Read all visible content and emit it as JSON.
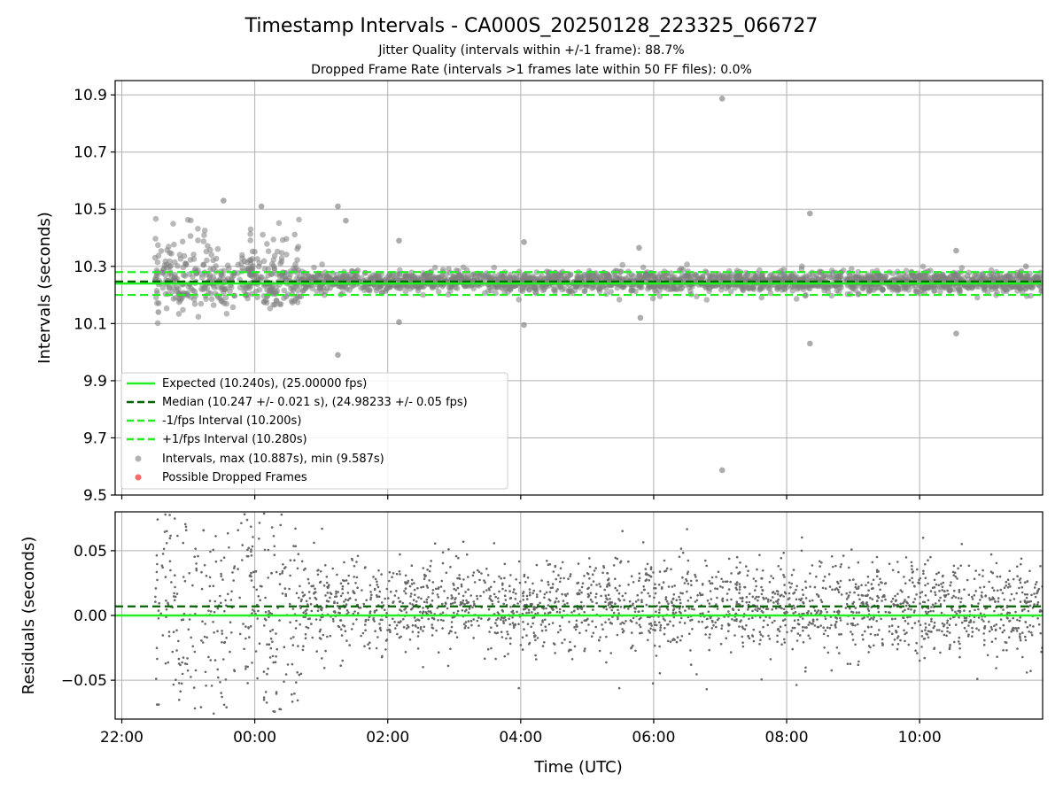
{
  "title": "Timestamp Intervals - CA000S_20250128_223325_066727",
  "subtitle_1": "Jitter Quality (intervals within +/-1 frame): 88.7%",
  "subtitle_2": "Dropped Frame Rate (intervals >1 frames late within 50 FF files): 0.0%",
  "colors": {
    "expected": "#22ee22",
    "median": "#006400",
    "bounds": "#22ee22",
    "points": "#808080",
    "dropped": "#ff4444"
  },
  "chart_data": [
    {
      "type": "scatter",
      "panel": "intervals",
      "ylabel": "Intervals (seconds)",
      "ylim": [
        9.5,
        10.95
      ],
      "y_ticks": [
        "10.9",
        "10.7",
        "10.5",
        "10.3",
        "10.1",
        "9.9",
        "9.7",
        "9.5"
      ],
      "y_tick_values": [
        10.9,
        10.7,
        10.5,
        10.3,
        10.1,
        9.9,
        9.7,
        9.5
      ],
      "xlim_hours": [
        -2.1,
        11.85
      ],
      "grid": true,
      "legend_position": "lower-left",
      "reference_lines": [
        {
          "name": "Expected (10.240s), (25.00000 fps)",
          "y": 10.24,
          "style": "solid"
        },
        {
          "name": "Median (10.247 +/- 0.021 s), (24.98233 +/- 0.05 fps)",
          "y": 10.247,
          "style": "dashed"
        },
        {
          "name": "-1/fps Interval (10.200s)",
          "y": 10.2,
          "style": "dashed"
        },
        {
          "name": "+1/fps Interval (10.280s)",
          "y": 10.28,
          "style": "dashed"
        }
      ],
      "series": [
        {
          "name": "Intervals, max (10.887s), min (9.587s)",
          "max": 10.887,
          "min": 9.587,
          "x_start_hours": -1.5,
          "x_end_hours": 11.85
        },
        {
          "name": "Possible Dropped Frames",
          "count": 0
        }
      ],
      "outliers": [
        {
          "x": 7.03,
          "y": 10.887
        },
        {
          "x": 7.03,
          "y": 9.587
        },
        {
          "x": 8.35,
          "y": 10.485
        },
        {
          "x": 8.35,
          "y": 10.03
        },
        {
          "x": -0.47,
          "y": 10.53
        },
        {
          "x": 0.1,
          "y": 10.51
        },
        {
          "x": 1.25,
          "y": 10.51
        },
        {
          "x": 1.37,
          "y": 10.46
        },
        {
          "x": 1.25,
          "y": 9.99
        },
        {
          "x": 2.17,
          "y": 10.39
        },
        {
          "x": 2.17,
          "y": 10.105
        },
        {
          "x": 4.05,
          "y": 10.385
        },
        {
          "x": 4.05,
          "y": 10.095
        },
        {
          "x": 5.78,
          "y": 10.365
        },
        {
          "x": 5.8,
          "y": 10.12
        },
        {
          "x": 10.55,
          "y": 10.355
        },
        {
          "x": 10.55,
          "y": 10.065
        },
        {
          "x": 11.6,
          "y": 10.3
        },
        {
          "x": -1.45,
          "y": 10.14
        }
      ]
    },
    {
      "type": "scatter",
      "panel": "residuals",
      "ylabel": "Residuals (seconds)",
      "xlabel": "Time (UTC)",
      "ylim": [
        -0.08,
        0.08
      ],
      "y_ticks": [
        "0.05",
        "0.00",
        "−0.05"
      ],
      "y_tick_values": [
        0.05,
        0.0,
        -0.05
      ],
      "x_ticks": [
        "22:00",
        "00:00",
        "02:00",
        "04:00",
        "06:00",
        "08:00",
        "10:00"
      ],
      "x_tick_hours": [
        -2,
        0,
        2,
        4,
        6,
        8,
        10
      ],
      "xlim_hours": [
        -2.1,
        11.85
      ],
      "grid": true,
      "reference_lines": [
        {
          "name": "Expected",
          "y": 0.0,
          "style": "solid"
        },
        {
          "name": "Median",
          "y": 0.007,
          "style": "dashed"
        }
      ]
    }
  ]
}
